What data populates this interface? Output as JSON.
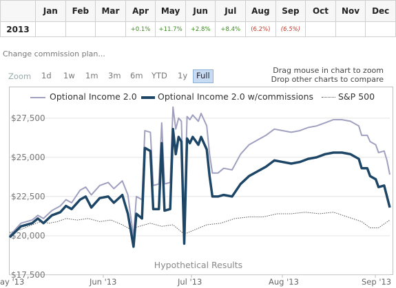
{
  "returns_table": {
    "months": [
      "Jan",
      "Feb",
      "Mar",
      "Apr",
      "May",
      "Jun",
      "Jul",
      "Aug",
      "Sep",
      "Oct",
      "Nov",
      "Dec"
    ],
    "rows": [
      {
        "year": "2013",
        "cells": [
          "",
          "",
          "",
          "+0.1%",
          "+11.7%",
          "+2.8%",
          "+8.4%",
          "(6.2%)",
          "(6.5%)",
          "",
          "",
          ""
        ]
      }
    ]
  },
  "change_commission_link": "Change commission plan...",
  "zoom": {
    "label": "Zoom",
    "buttons": [
      "1d",
      "1w",
      "1m",
      "3m",
      "6m",
      "YTD",
      "1y",
      "Full"
    ],
    "active": "Full"
  },
  "hints": {
    "drag": "Drag mouse in chart to zoom",
    "drop": "Drop other charts to compare"
  },
  "colors": {
    "series1": "#9f9fbf",
    "series2": "#1c4566",
    "sp500": "#555555",
    "positive": "#3a8a1e",
    "negative": "#c0392b",
    "active_zoom": "#c7dcf2"
  },
  "chart_data": {
    "type": "line",
    "annotation": "Hypothetical Results",
    "y_ticks": [
      "$27,500",
      "$25,000",
      "$22,500",
      "$20,000",
      "$17,500"
    ],
    "x_ticks": [
      "ay '13",
      "Jun '13",
      "Jul '13",
      "Aug '13",
      "Sep '13"
    ],
    "ylim": [
      17500,
      28500
    ],
    "grid": true,
    "legend_position": "top",
    "series": [
      {
        "name": "Optional Income 2.0",
        "points": [
          [
            0,
            20000
          ],
          [
            4,
            20800
          ],
          [
            8,
            21000
          ],
          [
            10,
            21300
          ],
          [
            12,
            21100
          ],
          [
            15,
            21600
          ],
          [
            18,
            21900
          ],
          [
            20,
            22300
          ],
          [
            22,
            22100
          ],
          [
            25,
            22900
          ],
          [
            27,
            23100
          ],
          [
            29,
            22600
          ],
          [
            32,
            23200
          ],
          [
            35,
            23400
          ],
          [
            37,
            23000
          ],
          [
            40,
            23500
          ],
          [
            42,
            22600
          ],
          [
            44,
            19900
          ],
          [
            45,
            22500
          ],
          [
            47,
            22300
          ],
          [
            48,
            26700
          ],
          [
            50,
            26600
          ],
          [
            51,
            23200
          ],
          [
            53,
            23300
          ],
          [
            54,
            27200
          ],
          [
            55,
            23300
          ],
          [
            57,
            23400
          ],
          [
            58,
            28200
          ],
          [
            59,
            26800
          ],
          [
            60,
            27500
          ],
          [
            61,
            27300
          ],
          [
            62,
            21200
          ],
          [
            63,
            27600
          ],
          [
            64,
            27400
          ],
          [
            65,
            27700
          ],
          [
            67,
            27300
          ],
          [
            68,
            27800
          ],
          [
            70,
            27000
          ],
          [
            71,
            25200
          ],
          [
            72,
            24000
          ],
          [
            74,
            24000
          ],
          [
            76,
            24300
          ],
          [
            79,
            24200
          ],
          [
            82,
            25200
          ],
          [
            85,
            25800
          ],
          [
            88,
            26100
          ],
          [
            91,
            26400
          ],
          [
            94,
            26800
          ],
          [
            97,
            26700
          ],
          [
            100,
            26600
          ],
          [
            103,
            26700
          ],
          [
            106,
            26900
          ],
          [
            109,
            27000
          ],
          [
            112,
            27200
          ],
          [
            115,
            27400
          ],
          [
            118,
            27400
          ],
          [
            121,
            27300
          ],
          [
            124,
            27000
          ],
          [
            125,
            26400
          ],
          [
            127,
            26400
          ],
          [
            128,
            26000
          ],
          [
            130,
            25800
          ],
          [
            131,
            25300
          ],
          [
            133,
            25400
          ],
          [
            134,
            24800
          ],
          [
            135,
            23900
          ]
        ]
      },
      {
        "name": "Optional Income 2.0 w/commissions",
        "points": [
          [
            0,
            19900
          ],
          [
            4,
            20600
          ],
          [
            8,
            20800
          ],
          [
            10,
            21100
          ],
          [
            12,
            20800
          ],
          [
            15,
            21300
          ],
          [
            18,
            21500
          ],
          [
            20,
            21900
          ],
          [
            22,
            21700
          ],
          [
            25,
            22300
          ],
          [
            27,
            22500
          ],
          [
            29,
            21800
          ],
          [
            32,
            22400
          ],
          [
            35,
            22500
          ],
          [
            37,
            22100
          ],
          [
            40,
            22600
          ],
          [
            42,
            21400
          ],
          [
            44,
            19300
          ],
          [
            45,
            21400
          ],
          [
            47,
            21100
          ],
          [
            48,
            25600
          ],
          [
            50,
            25400
          ],
          [
            51,
            21700
          ],
          [
            53,
            21700
          ],
          [
            54,
            25900
          ],
          [
            55,
            21600
          ],
          [
            57,
            21700
          ],
          [
            58,
            26800
          ],
          [
            59,
            25200
          ],
          [
            60,
            26300
          ],
          [
            61,
            26000
          ],
          [
            62,
            19500
          ],
          [
            63,
            26200
          ],
          [
            64,
            25900
          ],
          [
            65,
            26300
          ],
          [
            67,
            25800
          ],
          [
            68,
            26300
          ],
          [
            70,
            25500
          ],
          [
            71,
            23800
          ],
          [
            72,
            22500
          ],
          [
            74,
            22500
          ],
          [
            76,
            22600
          ],
          [
            79,
            22500
          ],
          [
            82,
            23300
          ],
          [
            85,
            23800
          ],
          [
            88,
            24100
          ],
          [
            91,
            24400
          ],
          [
            94,
            24800
          ],
          [
            97,
            24700
          ],
          [
            100,
            24600
          ],
          [
            103,
            24700
          ],
          [
            106,
            24900
          ],
          [
            109,
            25000
          ],
          [
            112,
            25200
          ],
          [
            115,
            25300
          ],
          [
            118,
            25300
          ],
          [
            121,
            25200
          ],
          [
            124,
            24900
          ],
          [
            125,
            24300
          ],
          [
            127,
            24300
          ],
          [
            128,
            23800
          ],
          [
            130,
            23600
          ],
          [
            131,
            23100
          ],
          [
            133,
            23200
          ],
          [
            134,
            22500
          ],
          [
            135,
            21800
          ]
        ]
      },
      {
        "name": "S&P 500",
        "points": [
          [
            0,
            20200
          ],
          [
            4,
            20400
          ],
          [
            8,
            20700
          ],
          [
            11,
            20900
          ],
          [
            14,
            20800
          ],
          [
            17,
            20900
          ],
          [
            20,
            21100
          ],
          [
            24,
            21000
          ],
          [
            28,
            21100
          ],
          [
            32,
            20900
          ],
          [
            36,
            21000
          ],
          [
            40,
            20700
          ],
          [
            43,
            20400
          ],
          [
            46,
            20600
          ],
          [
            50,
            20800
          ],
          [
            54,
            20600
          ],
          [
            58,
            20700
          ],
          [
            62,
            20100
          ],
          [
            66,
            20400
          ],
          [
            70,
            20700
          ],
          [
            75,
            20800
          ],
          [
            80,
            21100
          ],
          [
            85,
            21200
          ],
          [
            90,
            21200
          ],
          [
            95,
            21400
          ],
          [
            100,
            21400
          ],
          [
            105,
            21500
          ],
          [
            110,
            21400
          ],
          [
            115,
            21500
          ],
          [
            120,
            21200
          ],
          [
            125,
            20900
          ],
          [
            128,
            20500
          ],
          [
            131,
            20500
          ],
          [
            135,
            21000
          ]
        ]
      }
    ]
  }
}
